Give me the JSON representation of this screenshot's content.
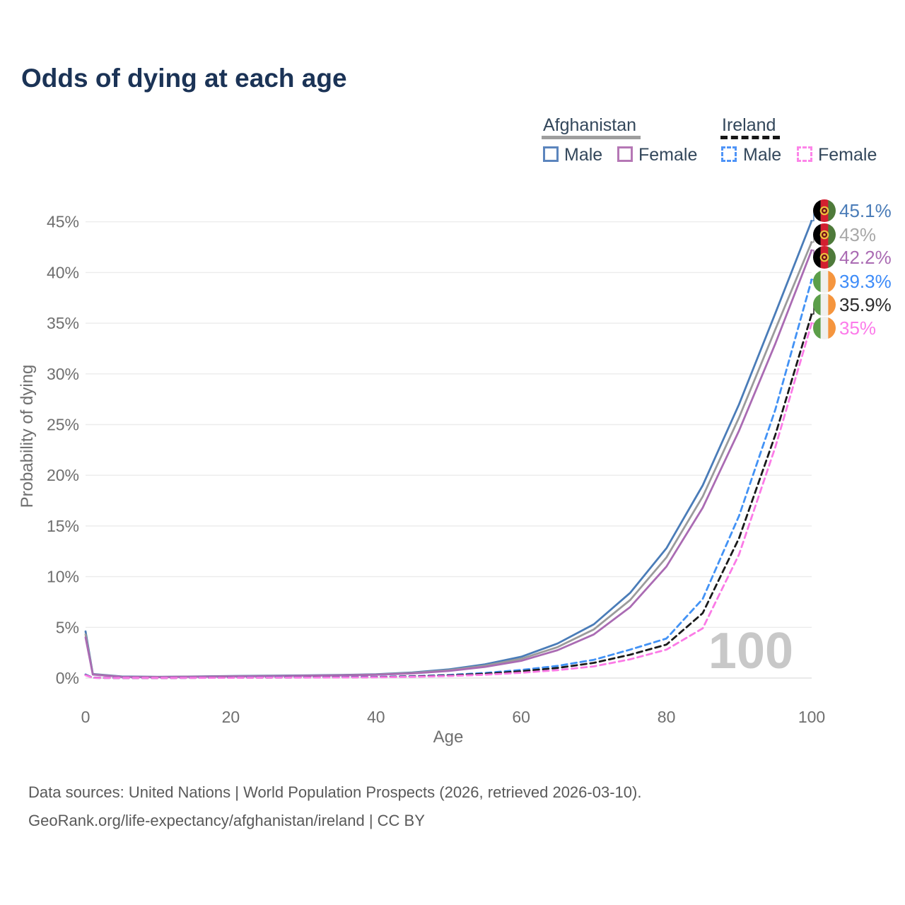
{
  "title": "Odds of dying at each age",
  "legend": {
    "groups": [
      {
        "country": "Afghanistan",
        "line_style": "solid",
        "underline_color": "#9e9e9e",
        "items": [
          {
            "label": "Male",
            "color": "#5b85bd"
          },
          {
            "label": "Female",
            "color": "#b577b5"
          }
        ]
      },
      {
        "country": "Ireland",
        "line_style": "dashed",
        "underline_color": "#161616",
        "items": [
          {
            "label": "Male",
            "color": "#4f94f7"
          },
          {
            "label": "Female",
            "color": "#fd85e9"
          }
        ]
      }
    ]
  },
  "chart_data": {
    "type": "line",
    "title": "Odds of dying at each age",
    "xlabel": "Age",
    "ylabel": "Probability of dying",
    "xlim": [
      0,
      100
    ],
    "ylim": [
      0,
      46
    ],
    "xticks": [
      0,
      20,
      40,
      60,
      80,
      100
    ],
    "yticks": [
      0,
      5,
      10,
      15,
      20,
      25,
      30,
      35,
      40,
      45
    ],
    "ytick_suffix": "%",
    "grid": true,
    "watermark": "100",
    "x": [
      0,
      1,
      5,
      10,
      15,
      20,
      25,
      30,
      35,
      40,
      45,
      50,
      55,
      60,
      65,
      70,
      75,
      80,
      85,
      90,
      95,
      100
    ],
    "series": [
      {
        "name": "Afghanistan Male",
        "country": "Afghanistan",
        "sex": "Male",
        "dashed": false,
        "color": "#4a7cb8",
        "label_color": "#4a7cb8",
        "flag": "afghanistan",
        "end_label": "45.1%",
        "values": [
          4.6,
          0.4,
          0.15,
          0.12,
          0.15,
          0.2,
          0.23,
          0.26,
          0.3,
          0.38,
          0.55,
          0.85,
          1.35,
          2.1,
          3.4,
          5.3,
          8.4,
          12.8,
          19.0,
          27.0,
          36.0,
          45.1
        ]
      },
      {
        "name": "Afghanistan Both sexes",
        "country": "Afghanistan",
        "sex": "Both",
        "dashed": false,
        "color": "#9b9b9b",
        "label_color": "#a8a8a8",
        "flag": "afghanistan",
        "end_label": "43%",
        "values": [
          4.3,
          0.37,
          0.13,
          0.11,
          0.14,
          0.18,
          0.21,
          0.24,
          0.28,
          0.35,
          0.5,
          0.77,
          1.22,
          1.9,
          3.05,
          4.8,
          7.7,
          11.9,
          17.9,
          25.7,
          34.4,
          43.0
        ]
      },
      {
        "name": "Afghanistan Female",
        "country": "Afghanistan",
        "sex": "Female",
        "dashed": false,
        "color": "#aa6bb3",
        "label_color": "#aa6bb3",
        "flag": "afghanistan",
        "end_label": "42.2%",
        "values": [
          4.0,
          0.34,
          0.12,
          0.1,
          0.13,
          0.16,
          0.19,
          0.22,
          0.26,
          0.32,
          0.45,
          0.7,
          1.1,
          1.7,
          2.75,
          4.3,
          7.0,
          11.0,
          16.8,
          24.4,
          33.0,
          42.2
        ]
      },
      {
        "name": "Ireland Male",
        "country": "Ireland",
        "sex": "Male",
        "dashed": true,
        "color": "#4292f5",
        "label_color": "#3d8bf8",
        "flag": "ireland",
        "end_label": "39.3%",
        "values": [
          0.35,
          0.03,
          0.01,
          0.01,
          0.03,
          0.05,
          0.06,
          0.07,
          0.09,
          0.12,
          0.18,
          0.3,
          0.5,
          0.8,
          1.2,
          1.8,
          2.8,
          3.9,
          7.8,
          16.0,
          26.5,
          39.3
        ]
      },
      {
        "name": "Ireland Both sexes",
        "country": "Ireland",
        "sex": "Both",
        "dashed": true,
        "color": "#1a1a1a",
        "label_color": "#2b2b2b",
        "flag": "ireland",
        "end_label": "35.9%",
        "values": [
          0.31,
          0.03,
          0.01,
          0.01,
          0.02,
          0.04,
          0.05,
          0.06,
          0.08,
          0.1,
          0.15,
          0.25,
          0.42,
          0.67,
          1.0,
          1.5,
          2.3,
          3.3,
          6.4,
          13.8,
          24.0,
          35.9
        ]
      },
      {
        "name": "Ireland Female",
        "country": "Ireland",
        "sex": "Female",
        "dashed": true,
        "color": "#fb7ae6",
        "label_color": "#fc7bea",
        "flag": "ireland",
        "end_label": "35%",
        "values": [
          0.28,
          0.02,
          0.01,
          0.01,
          0.02,
          0.03,
          0.04,
          0.05,
          0.06,
          0.08,
          0.12,
          0.2,
          0.33,
          0.52,
          0.78,
          1.15,
          1.85,
          2.8,
          4.9,
          12.2,
          22.8,
          35.0
        ]
      }
    ],
    "flag_colors": {
      "afghanistan": {
        "stripes": [
          "#000000",
          "#d32030",
          "#4e7a3a"
        ],
        "emblem": "#eec23e"
      },
      "ireland": {
        "stripes": [
          "#5b9e49",
          "#f0f0ee",
          "#f5953e"
        ]
      }
    }
  },
  "footer": {
    "line1": "Data sources: United Nations | World Population Prospects (2026, retrieved 2026-03-10).",
    "line2": "GeoRank.org/life-expectancy/afghanistan/ireland | CC BY"
  }
}
